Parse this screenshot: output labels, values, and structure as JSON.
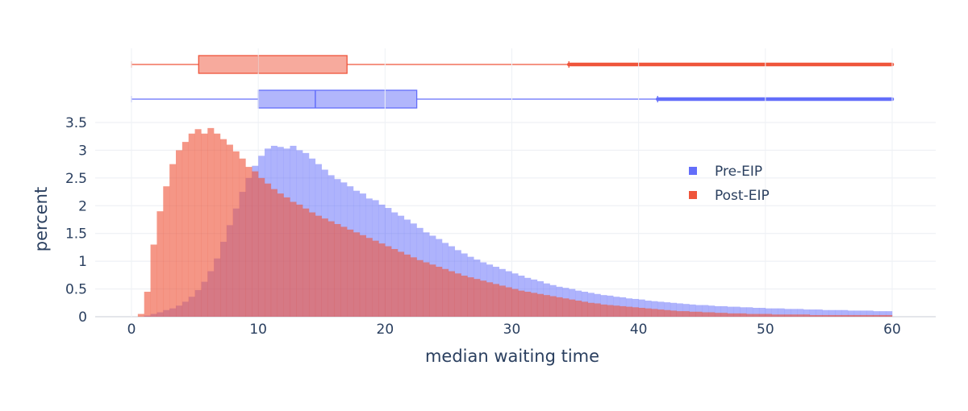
{
  "chart_data": {
    "type": "histogram",
    "title": "",
    "xlabel": "median waiting time",
    "ylabel": "percent",
    "xlim": [
      0,
      60
    ],
    "ylim": [
      0,
      3.5
    ],
    "bin_width": 0.5,
    "x_ticks": [
      0,
      10,
      20,
      30,
      40,
      50,
      60
    ],
    "y_ticks": [
      "0",
      "0.5",
      "1",
      "1.5",
      "2",
      "2.5",
      "3",
      "3.5"
    ],
    "grid": true,
    "legend_position": "top-right",
    "series": [
      {
        "name": "Pre-EIP",
        "color": "#636efa",
        "box": {
          "min": 0,
          "q1": 10,
          "median": 14.5,
          "q3": 22.5,
          "upper_fence": 41.5,
          "max": 60
        },
        "values": [
          0.0,
          0.0,
          0.02,
          0.05,
          0.08,
          0.12,
          0.15,
          0.2,
          0.27,
          0.36,
          0.48,
          0.63,
          0.82,
          1.05,
          1.35,
          1.65,
          1.95,
          2.25,
          2.5,
          2.72,
          2.9,
          3.03,
          3.08,
          3.06,
          3.03,
          3.08,
          3.0,
          2.95,
          2.85,
          2.75,
          2.65,
          2.55,
          2.48,
          2.42,
          2.35,
          2.27,
          2.22,
          2.13,
          2.1,
          2.02,
          1.96,
          1.88,
          1.82,
          1.75,
          1.68,
          1.6,
          1.52,
          1.46,
          1.4,
          1.33,
          1.27,
          1.2,
          1.14,
          1.08,
          1.03,
          0.98,
          0.94,
          0.9,
          0.86,
          0.82,
          0.78,
          0.74,
          0.7,
          0.67,
          0.64,
          0.6,
          0.57,
          0.54,
          0.52,
          0.5,
          0.47,
          0.45,
          0.43,
          0.41,
          0.39,
          0.38,
          0.36,
          0.35,
          0.33,
          0.32,
          0.31,
          0.29,
          0.28,
          0.27,
          0.26,
          0.25,
          0.24,
          0.23,
          0.22,
          0.21,
          0.21,
          0.2,
          0.19,
          0.19,
          0.18,
          0.18,
          0.17,
          0.17,
          0.16,
          0.16,
          0.15,
          0.15,
          0.15,
          0.14,
          0.14,
          0.14,
          0.13,
          0.13,
          0.13,
          0.12,
          0.12,
          0.12,
          0.12,
          0.11,
          0.11,
          0.11,
          0.11,
          0.1,
          0.1,
          0.1
        ]
      },
      {
        "name": "Post-EIP",
        "color": "#ef553b",
        "box": {
          "min": 0,
          "q1": 5.3,
          "median": 10,
          "q3": 17,
          "upper_fence": 34.5,
          "max": 60
        },
        "values": [
          0.0,
          0.05,
          0.45,
          1.3,
          1.9,
          2.35,
          2.75,
          3.0,
          3.15,
          3.3,
          3.38,
          3.3,
          3.4,
          3.3,
          3.2,
          3.1,
          2.98,
          2.85,
          2.7,
          2.62,
          2.5,
          2.4,
          2.3,
          2.22,
          2.15,
          2.07,
          2.02,
          1.95,
          1.88,
          1.82,
          1.77,
          1.72,
          1.67,
          1.62,
          1.57,
          1.52,
          1.47,
          1.42,
          1.37,
          1.32,
          1.27,
          1.22,
          1.17,
          1.12,
          1.07,
          1.02,
          0.98,
          0.94,
          0.9,
          0.86,
          0.82,
          0.78,
          0.74,
          0.71,
          0.68,
          0.65,
          0.62,
          0.59,
          0.56,
          0.53,
          0.5,
          0.47,
          0.45,
          0.43,
          0.41,
          0.39,
          0.37,
          0.35,
          0.33,
          0.31,
          0.29,
          0.27,
          0.25,
          0.24,
          0.22,
          0.21,
          0.2,
          0.19,
          0.18,
          0.17,
          0.16,
          0.15,
          0.14,
          0.13,
          0.12,
          0.11,
          0.1,
          0.1,
          0.09,
          0.09,
          0.08,
          0.08,
          0.07,
          0.07,
          0.06,
          0.06,
          0.06,
          0.05,
          0.05,
          0.05,
          0.05,
          0.04,
          0.04,
          0.04,
          0.04,
          0.04,
          0.04,
          0.03,
          0.03,
          0.03,
          0.03,
          0.03,
          0.03,
          0.03,
          0.03,
          0.03,
          0.03,
          0.03,
          0.03,
          0.03
        ]
      }
    ]
  }
}
